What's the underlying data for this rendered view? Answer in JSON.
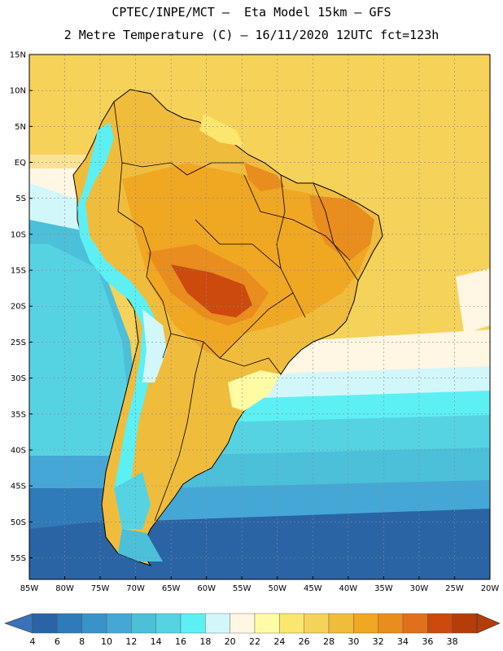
{
  "title_line1": "CPTEC/INPE/MCT –  Eta Model 15km – GFS",
  "title_line2": "2 Metre Temperature (C) – 16/11/2020 12UTC fct=123h",
  "lat_labels": [
    "15N",
    "10N",
    "5N",
    "EQ",
    "5S",
    "10S",
    "15S",
    "20S",
    "25S",
    "30S",
    "35S",
    "40S",
    "45S",
    "50S",
    "55S"
  ],
  "lon_labels": [
    "85W",
    "80W",
    "75W",
    "70W",
    "65W",
    "60W",
    "55W",
    "50W",
    "45W",
    "40W",
    "35W",
    "30W",
    "25W",
    "20W"
  ],
  "colorbar": {
    "labels": [
      "4",
      "6",
      "8",
      "10",
      "12",
      "14",
      "16",
      "18",
      "20",
      "22",
      "24",
      "26",
      "28",
      "30",
      "32",
      "34",
      "36",
      "38"
    ],
    "colors": [
      "#2a64a4",
      "#2f7ab8",
      "#3b92c8",
      "#45a7d6",
      "#4cbfd9",
      "#56d3e3",
      "#5cf0f4",
      "#d2f7fb",
      "#fff6e3",
      "#fffba4",
      "#fbe66f",
      "#f5d25a",
      "#f0bc3c",
      "#f0a722",
      "#e98d1e",
      "#e1701c",
      "#cc4a0e",
      "#b43d0a"
    ],
    "underflow_color": "#3b72b8",
    "overflow_color": "#b43d0a"
  },
  "map": {
    "ocean_colors": [
      "#2a64a4",
      "#45a7d6",
      "#4cbfd9",
      "#56d3e3",
      "#5cf0f4",
      "#d2f7fb",
      "#fff6e3",
      "#f5d25a"
    ],
    "land_colors": [
      "#f0bc3c",
      "#f0a722",
      "#e98d1e",
      "#cc4a0e",
      "#5cf0f4",
      "#d2f7fb"
    ]
  }
}
